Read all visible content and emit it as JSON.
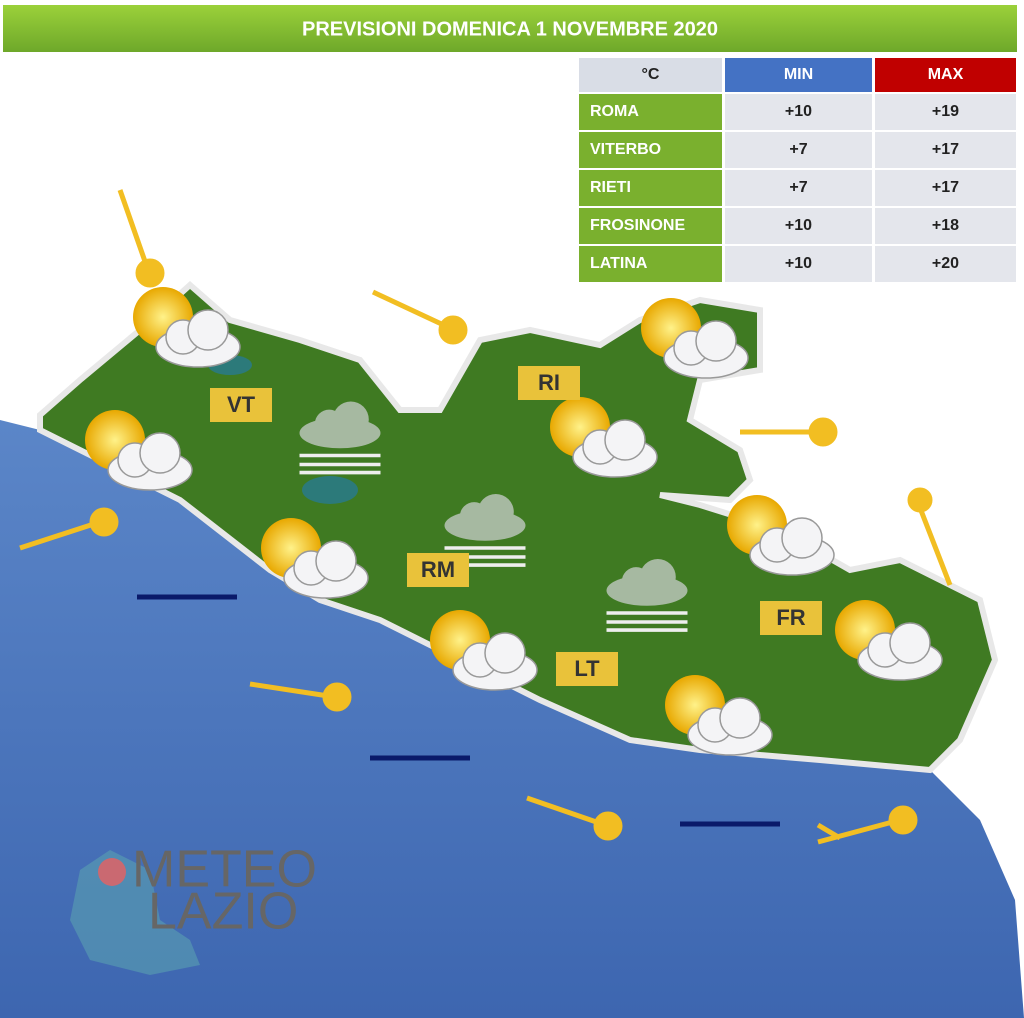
{
  "header": {
    "title": "PREVISIONI DOMENICA 1 NOVEMBRE 2020"
  },
  "table": {
    "columns": [
      "°C",
      "MIN",
      "MAX"
    ],
    "rows": [
      [
        "ROMA",
        "+10",
        "+19"
      ],
      [
        "VITERBO",
        "+7",
        "+17"
      ],
      [
        "RIETI",
        "+7",
        "+17"
      ],
      [
        "FROSINONE",
        "+10",
        "+18"
      ],
      [
        "LATINA",
        "+10",
        "+20"
      ]
    ]
  },
  "map": {
    "labels": [
      "VT",
      "RI",
      "RM",
      "LT",
      "FR"
    ]
  },
  "logo": {
    "lines": [
      "METEO",
      "LAZIO"
    ]
  }
}
